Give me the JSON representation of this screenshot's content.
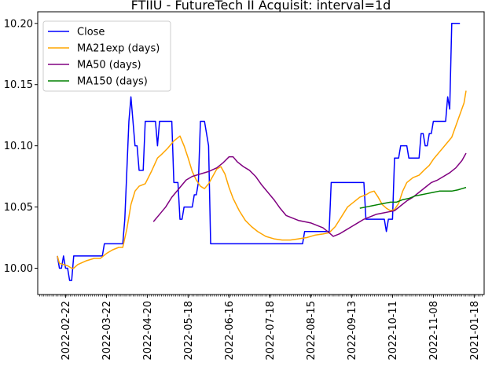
{
  "chart_data": {
    "type": "line",
    "title": "FTIIU - FutureTech II Acquisit: interval=1d",
    "xlabel": "",
    "ylabel": "",
    "ylim": [
      9.9785,
      10.2095
    ],
    "y_ticks": [
      {
        "value": 10.0,
        "label": "10.00"
      },
      {
        "value": 10.05,
        "label": "10.05"
      },
      {
        "value": 10.1,
        "label": "10.10"
      },
      {
        "value": 10.15,
        "label": "10.15"
      },
      {
        "value": 10.2,
        "label": "10.20"
      }
    ],
    "x_ticks": [
      {
        "index": 14,
        "label": "2022-02-22"
      },
      {
        "index": 34,
        "label": "2022-03-22"
      },
      {
        "index": 54,
        "label": "2022-04-20"
      },
      {
        "index": 74,
        "label": "2022-05-18"
      },
      {
        "index": 94,
        "label": "2022-06-16"
      },
      {
        "index": 114,
        "label": "2022-07-18"
      },
      {
        "index": 134,
        "label": "2022-08-15"
      },
      {
        "index": 154,
        "label": "2022-09-13"
      },
      {
        "index": 174,
        "label": "2022-10-11"
      },
      {
        "index": 194,
        "label": "2022-11-08"
      },
      {
        "index": 214,
        "label": "2021-01-18"
      }
    ],
    "x_index_range": [
      0,
      216
    ],
    "minor_tick_count": 221,
    "legend_position": "upper left",
    "grid": false,
    "series": [
      {
        "name": "Close",
        "color": "#0000ff",
        "points": [
          [
            10,
            10.01
          ],
          [
            11,
            10.0
          ],
          [
            12,
            10.0
          ],
          [
            13,
            10.01
          ],
          [
            14,
            10.0
          ],
          [
            15,
            10.0
          ],
          [
            16,
            9.99
          ],
          [
            17,
            9.99
          ],
          [
            18,
            10.01
          ],
          [
            20,
            10.01
          ],
          [
            32,
            10.01
          ],
          [
            33,
            10.02
          ],
          [
            40,
            10.02
          ],
          [
            41,
            10.02
          ],
          [
            42,
            10.02
          ],
          [
            43,
            10.04
          ],
          [
            44,
            10.08
          ],
          [
            45,
            10.12
          ],
          [
            46,
            10.14
          ],
          [
            47,
            10.12
          ],
          [
            48,
            10.1
          ],
          [
            49,
            10.1
          ],
          [
            50,
            10.08
          ],
          [
            51,
            10.08
          ],
          [
            52,
            10.08
          ],
          [
            53,
            10.12
          ],
          [
            54,
            10.12
          ],
          [
            58,
            10.12
          ],
          [
            59,
            10.1
          ],
          [
            60,
            10.12
          ],
          [
            61,
            10.12
          ],
          [
            66,
            10.12
          ],
          [
            67,
            10.07
          ],
          [
            69,
            10.07
          ],
          [
            70,
            10.04
          ],
          [
            71,
            10.04
          ],
          [
            72,
            10.05
          ],
          [
            76,
            10.05
          ],
          [
            77,
            10.06
          ],
          [
            78,
            10.06
          ],
          [
            79,
            10.07
          ],
          [
            80,
            10.12
          ],
          [
            82,
            10.12
          ],
          [
            84,
            10.1
          ],
          [
            85,
            10.02
          ],
          [
            86,
            10.02
          ],
          [
            130,
            10.02
          ],
          [
            131,
            10.03
          ],
          [
            143,
            10.03
          ],
          [
            144,
            10.07
          ],
          [
            160,
            10.07
          ],
          [
            161,
            10.04
          ],
          [
            166,
            10.04
          ],
          [
            167,
            10.04
          ],
          [
            170,
            10.04
          ],
          [
            171,
            10.03
          ],
          [
            172,
            10.04
          ],
          [
            173,
            10.04
          ],
          [
            174,
            10.04
          ],
          [
            175,
            10.09
          ],
          [
            177,
            10.09
          ],
          [
            178,
            10.1
          ],
          [
            181,
            10.1
          ],
          [
            182,
            10.09
          ],
          [
            187,
            10.09
          ],
          [
            188,
            10.11
          ],
          [
            189,
            10.11
          ],
          [
            190,
            10.1
          ],
          [
            191,
            10.1
          ],
          [
            192,
            10.11
          ],
          [
            193,
            10.11
          ],
          [
            194,
            10.12
          ],
          [
            200,
            10.12
          ],
          [
            201,
            10.14
          ],
          [
            202,
            10.13
          ],
          [
            203,
            10.2
          ],
          [
            207,
            10.2
          ]
        ]
      },
      {
        "name": "MA21exp (days)",
        "color": "#ffa500",
        "points": [
          [
            10,
            10.01
          ],
          [
            11,
            10.004
          ],
          [
            13,
            10.003
          ],
          [
            15,
            10.002
          ],
          [
            17,
            10.0
          ],
          [
            18,
            10.0
          ],
          [
            20,
            10.003
          ],
          [
            24,
            10.006
          ],
          [
            28,
            10.008
          ],
          [
            31,
            10.008
          ],
          [
            34,
            10.012
          ],
          [
            37,
            10.015
          ],
          [
            40,
            10.017
          ],
          [
            42,
            10.017
          ],
          [
            44,
            10.032
          ],
          [
            46,
            10.052
          ],
          [
            48,
            10.063
          ],
          [
            50,
            10.067
          ],
          [
            53,
            10.069
          ],
          [
            56,
            10.079
          ],
          [
            59,
            10.09
          ],
          [
            61,
            10.093
          ],
          [
            64,
            10.098
          ],
          [
            67,
            10.104
          ],
          [
            70,
            10.108
          ],
          [
            72,
            10.1
          ],
          [
            74,
            10.09
          ],
          [
            76,
            10.079
          ],
          [
            78,
            10.072
          ],
          [
            80,
            10.067
          ],
          [
            82,
            10.065
          ],
          [
            84,
            10.069
          ],
          [
            86,
            10.075
          ],
          [
            88,
            10.081
          ],
          [
            90,
            10.083
          ],
          [
            92,
            10.077
          ],
          [
            94,
            10.066
          ],
          [
            96,
            10.057
          ],
          [
            99,
            10.047
          ],
          [
            102,
            10.039
          ],
          [
            105,
            10.034
          ],
          [
            108,
            10.03
          ],
          [
            112,
            10.026
          ],
          [
            116,
            10.024
          ],
          [
            120,
            10.023
          ],
          [
            124,
            10.023
          ],
          [
            128,
            10.024
          ],
          [
            132,
            10.025
          ],
          [
            136,
            10.027
          ],
          [
            140,
            10.028
          ],
          [
            143,
            10.029
          ],
          [
            146,
            10.034
          ],
          [
            149,
            10.042
          ],
          [
            152,
            10.05
          ],
          [
            155,
            10.054
          ],
          [
            158,
            10.058
          ],
          [
            161,
            10.06
          ],
          [
            163,
            10.062
          ],
          [
            165,
            10.063
          ],
          [
            167,
            10.058
          ],
          [
            169,
            10.052
          ],
          [
            171,
            10.049
          ],
          [
            173,
            10.047
          ],
          [
            175,
            10.048
          ],
          [
            177,
            10.053
          ],
          [
            179,
            10.063
          ],
          [
            181,
            10.07
          ],
          [
            184,
            10.074
          ],
          [
            187,
            10.076
          ],
          [
            190,
            10.081
          ],
          [
            192,
            10.084
          ],
          [
            194,
            10.089
          ],
          [
            197,
            10.095
          ],
          [
            200,
            10.101
          ],
          [
            203,
            10.107
          ],
          [
            206,
            10.121
          ],
          [
            209,
            10.135
          ],
          [
            210,
            10.145
          ]
        ]
      },
      {
        "name": "MA50 (days)",
        "color": "#800080",
        "points": [
          [
            57,
            10.038
          ],
          [
            60,
            10.044
          ],
          [
            63,
            10.05
          ],
          [
            66,
            10.058
          ],
          [
            70,
            10.066
          ],
          [
            73,
            10.072
          ],
          [
            76,
            10.075
          ],
          [
            80,
            10.077
          ],
          [
            84,
            10.079
          ],
          [
            88,
            10.082
          ],
          [
            91,
            10.086
          ],
          [
            94,
            10.091
          ],
          [
            96,
            10.091
          ],
          [
            98,
            10.087
          ],
          [
            101,
            10.083
          ],
          [
            104,
            10.08
          ],
          [
            107,
            10.075
          ],
          [
            110,
            10.068
          ],
          [
            113,
            10.062
          ],
          [
            116,
            10.056
          ],
          [
            119,
            10.049
          ],
          [
            122,
            10.043
          ],
          [
            125,
            10.041
          ],
          [
            128,
            10.039
          ],
          [
            131,
            10.038
          ],
          [
            134,
            10.037
          ],
          [
            137,
            10.035
          ],
          [
            140,
            10.033
          ],
          [
            143,
            10.029
          ],
          [
            145,
            10.026
          ],
          [
            148,
            10.028
          ],
          [
            151,
            10.031
          ],
          [
            154,
            10.034
          ],
          [
            157,
            10.037
          ],
          [
            160,
            10.04
          ],
          [
            163,
            10.042
          ],
          [
            166,
            10.044
          ],
          [
            169,
            10.045
          ],
          [
            172,
            10.046
          ],
          [
            175,
            10.047
          ],
          [
            178,
            10.051
          ],
          [
            181,
            10.055
          ],
          [
            184,
            10.058
          ],
          [
            187,
            10.062
          ],
          [
            190,
            10.066
          ],
          [
            193,
            10.07
          ],
          [
            196,
            10.072
          ],
          [
            199,
            10.075
          ],
          [
            202,
            10.078
          ],
          [
            205,
            10.082
          ],
          [
            208,
            10.088
          ],
          [
            210,
            10.094
          ]
        ]
      },
      {
        "name": "MA150 (days)",
        "color": "#008000",
        "points": [
          [
            158,
            10.049
          ],
          [
            161,
            10.05
          ],
          [
            164,
            10.051
          ],
          [
            167,
            10.052
          ],
          [
            170,
            10.053
          ],
          [
            173,
            10.054
          ],
          [
            176,
            10.054
          ],
          [
            179,
            10.056
          ],
          [
            182,
            10.057
          ],
          [
            185,
            10.059
          ],
          [
            188,
            10.06
          ],
          [
            191,
            10.061
          ],
          [
            194,
            10.062
          ],
          [
            197,
            10.063
          ],
          [
            200,
            10.063
          ],
          [
            203,
            10.063
          ],
          [
            206,
            10.064
          ],
          [
            208,
            10.065
          ],
          [
            210,
            10.066
          ]
        ]
      }
    ]
  }
}
